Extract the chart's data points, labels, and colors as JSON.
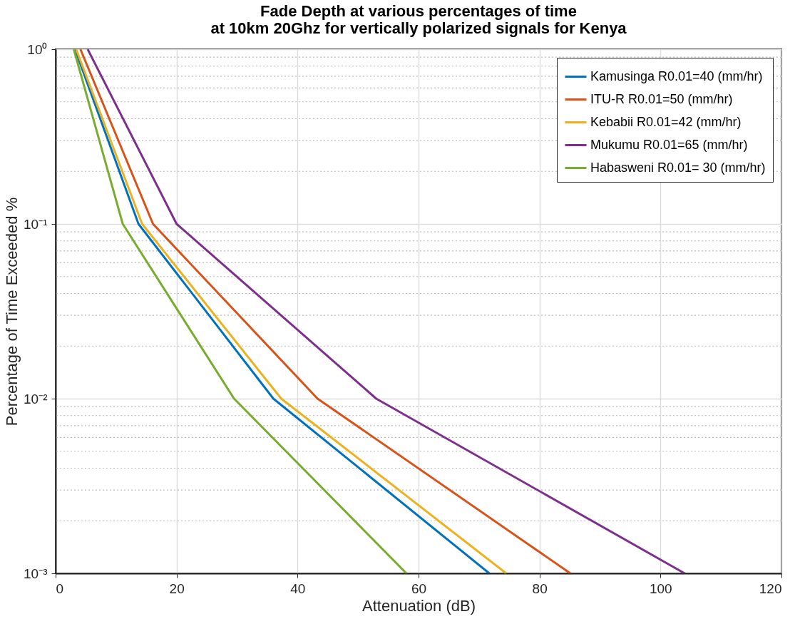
{
  "chart_data": {
    "type": "line",
    "title": "Fade Depth at various percentages of time\nat 10km 20Ghz for vertically polarized signals for Kenya",
    "xlabel": "Attenuation (dB)",
    "ylabel": "Percentage of Time Exceeded %",
    "series": [
      {
        "name": "Kamusinga R0.01=40 (mm/hr)",
        "color": "#0072bd",
        "x": [
          3.2,
          13.7,
          36,
          71.7
        ],
        "values": [
          1,
          0.1,
          0.01,
          0.001
        ]
      },
      {
        "name": "ITU-R R0.01=50 (mm/hr)",
        "color": "#d95319",
        "x": [
          4.1,
          16.1,
          43.3,
          85.1
        ],
        "values": [
          1,
          0.1,
          0.01,
          0.001
        ]
      },
      {
        "name": "Kebabii R0.01=42 (mm/hr)",
        "color": "#edb120",
        "x": [
          3.4,
          14.3,
          37.3,
          74.5
        ],
        "values": [
          1,
          0.1,
          0.01,
          0.001
        ]
      },
      {
        "name": "Mukumu R0.01=65 (mm/hr)",
        "color": "#7e2f8e",
        "x": [
          5.3,
          20,
          53,
          104
        ],
        "values": [
          1,
          0.1,
          0.01,
          0.001
        ]
      },
      {
        "name": "Habasweni R0.01= 30 (mm/hr)",
        "color": "#77ac30",
        "x": [
          3,
          11.1,
          29.5,
          58
        ],
        "values": [
          1,
          0.1,
          0.01,
          0.001
        ]
      }
    ],
    "xlim": [
      0,
      120
    ],
    "xticks": [
      0,
      20,
      40,
      60,
      80,
      100,
      120
    ],
    "ylim": [
      0.001,
      1
    ],
    "yticks": [
      {
        "value": 0.001,
        "label": "10⁻³"
      },
      {
        "value": 0.01,
        "label": "10⁻²"
      },
      {
        "value": 0.1,
        "label": "10⁻¹"
      },
      {
        "value": 1,
        "label": "10⁰"
      }
    ],
    "log": "y",
    "grid": true,
    "legend": "top right",
    "marker": "none",
    "line_style": "solid"
  }
}
